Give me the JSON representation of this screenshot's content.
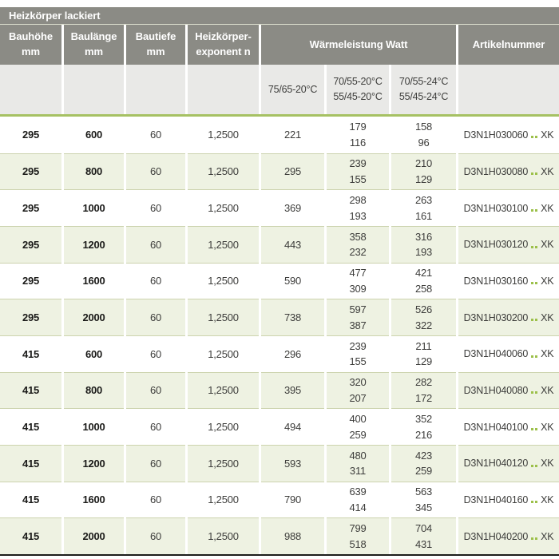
{
  "title": "Heizkörper lackiert",
  "columns": {
    "bauhoehe": "Bauhöhe\nmm",
    "baulaenge": "Baulänge\nmm",
    "bautiefe": "Bautiefe\nmm",
    "exponent": "Heizkörper-\nexponent n",
    "waermeleistung": "Wärmeleistung Watt",
    "artikelnummer": "Artikelnummer"
  },
  "subcolumns": [
    "75/65-20°C",
    "70/55-20°C\n55/45-20°C",
    "70/55-24°C\n55/45-24°C"
  ],
  "artikel_suffix": "XK",
  "colors": {
    "header_gray": "#8b8b85",
    "subheader_gray": "#e9e9e7",
    "row_green": "#eef2e2",
    "accent_green_line": "#a6c163",
    "dot_green": "#9cc04a"
  },
  "rows": [
    {
      "bauhoehe": "295",
      "baulaenge": "600",
      "bautiefe": "60",
      "exponent": "1,2500",
      "w1": "221",
      "w2": "179\n116",
      "w3": "158\n96",
      "artikel": "D3N1H030060"
    },
    {
      "bauhoehe": "295",
      "baulaenge": "800",
      "bautiefe": "60",
      "exponent": "1,2500",
      "w1": "295",
      "w2": "239\n155",
      "w3": "210\n129",
      "artikel": "D3N1H030080"
    },
    {
      "bauhoehe": "295",
      "baulaenge": "1000",
      "bautiefe": "60",
      "exponent": "1,2500",
      "w1": "369",
      "w2": "298\n193",
      "w3": "263\n161",
      "artikel": "D3N1H030100"
    },
    {
      "bauhoehe": "295",
      "baulaenge": "1200",
      "bautiefe": "60",
      "exponent": "1,2500",
      "w1": "443",
      "w2": "358\n232",
      "w3": "316\n193",
      "artikel": "D3N1H030120"
    },
    {
      "bauhoehe": "295",
      "baulaenge": "1600",
      "bautiefe": "60",
      "exponent": "1,2500",
      "w1": "590",
      "w2": "477\n309",
      "w3": "421\n258",
      "artikel": "D3N1H030160"
    },
    {
      "bauhoehe": "295",
      "baulaenge": "2000",
      "bautiefe": "60",
      "exponent": "1,2500",
      "w1": "738",
      "w2": "597\n387",
      "w3": "526\n322",
      "artikel": "D3N1H030200"
    },
    {
      "bauhoehe": "415",
      "baulaenge": "600",
      "bautiefe": "60",
      "exponent": "1,2500",
      "w1": "296",
      "w2": "239\n155",
      "w3": "211\n129",
      "artikel": "D3N1H040060"
    },
    {
      "bauhoehe": "415",
      "baulaenge": "800",
      "bautiefe": "60",
      "exponent": "1,2500",
      "w1": "395",
      "w2": "320\n207",
      "w3": "282\n172",
      "artikel": "D3N1H040080"
    },
    {
      "bauhoehe": "415",
      "baulaenge": "1000",
      "bautiefe": "60",
      "exponent": "1,2500",
      "w1": "494",
      "w2": "400\n259",
      "w3": "352\n216",
      "artikel": "D3N1H040100"
    },
    {
      "bauhoehe": "415",
      "baulaenge": "1200",
      "bautiefe": "60",
      "exponent": "1,2500",
      "w1": "593",
      "w2": "480\n311",
      "w3": "423\n259",
      "artikel": "D3N1H040120"
    },
    {
      "bauhoehe": "415",
      "baulaenge": "1600",
      "bautiefe": "60",
      "exponent": "1,2500",
      "w1": "790",
      "w2": "639\n414",
      "w3": "563\n345",
      "artikel": "D3N1H040160"
    },
    {
      "bauhoehe": "415",
      "baulaenge": "2000",
      "bautiefe": "60",
      "exponent": "1,2500",
      "w1": "988",
      "w2": "799\n518",
      "w3": "704\n431",
      "artikel": "D3N1H040200"
    }
  ]
}
